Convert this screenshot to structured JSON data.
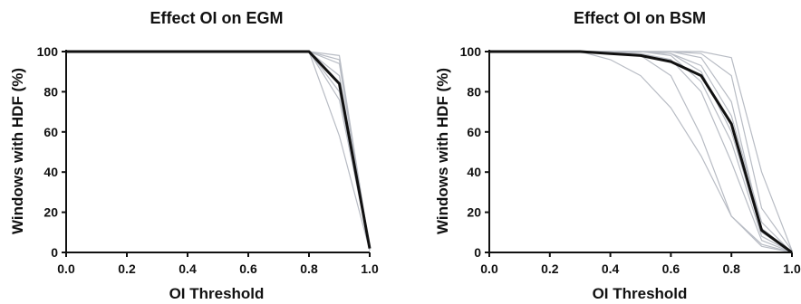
{
  "chart_data": [
    {
      "type": "line",
      "title": "Effect OI on EGM",
      "xlabel": "OI Threshold",
      "ylabel": "Windows with HDF (%)",
      "xlim": [
        0.0,
        1.0
      ],
      "ylim": [
        0,
        100
      ],
      "xticks": [
        "0.0",
        "0.2",
        "0.4",
        "0.6",
        "0.8",
        "1.0"
      ],
      "yticks": [
        "0",
        "20",
        "40",
        "60",
        "80",
        "100"
      ],
      "grid": false,
      "colors": {
        "individual": "#b8bcc4",
        "mean": "#111111"
      },
      "series": [
        {
          "x": [
            0.0,
            0.8,
            0.9,
            1.0
          ],
          "y": [
            100,
            100,
            98,
            2
          ]
        },
        {
          "x": [
            0.0,
            0.8,
            0.9,
            1.0
          ],
          "y": [
            100,
            100,
            96,
            2
          ]
        },
        {
          "x": [
            0.0,
            0.8,
            0.9,
            1.0
          ],
          "y": [
            100,
            100,
            94,
            1
          ]
        },
        {
          "x": [
            0.0,
            0.8,
            0.9,
            1.0
          ],
          "y": [
            100,
            100,
            88,
            2
          ]
        },
        {
          "x": [
            0.0,
            0.8,
            0.9,
            1.0
          ],
          "y": [
            100,
            100,
            80,
            1
          ]
        },
        {
          "x": [
            0.0,
            0.8,
            0.9,
            1.0
          ],
          "y": [
            100,
            100,
            76,
            2
          ]
        },
        {
          "x": [
            0.0,
            0.8,
            0.9,
            1.0
          ],
          "y": [
            100,
            100,
            58,
            1
          ]
        },
        {
          "x": [
            0.0,
            0.8,
            0.9,
            1.0
          ],
          "y": [
            100,
            100,
            84,
            2
          ],
          "mean": true
        }
      ]
    },
    {
      "type": "line",
      "title": "Effect OI on BSM",
      "xlabel": "OI Threshold",
      "ylabel": "Windows with HDF (%)",
      "xlim": [
        0.0,
        1.0
      ],
      "ylim": [
        0,
        100
      ],
      "xticks": [
        "0.0",
        "0.2",
        "0.4",
        "0.6",
        "0.8",
        "1.0"
      ],
      "yticks": [
        "0",
        "20",
        "40",
        "60",
        "80",
        "100"
      ],
      "grid": false,
      "colors": {
        "individual": "#b8bcc4",
        "mean": "#111111"
      },
      "series": [
        {
          "x": [
            0.0,
            0.3,
            0.4,
            0.5,
            0.6,
            0.7,
            0.8,
            0.9,
            1.0
          ],
          "y": [
            100,
            100,
            96,
            88,
            72,
            48,
            18,
            3,
            0
          ]
        },
        {
          "x": [
            0.0,
            0.3,
            0.4,
            0.5,
            0.6,
            0.7,
            0.8,
            0.9,
            1.0
          ],
          "y": [
            100,
            100,
            100,
            98,
            88,
            58,
            18,
            4,
            0
          ]
        },
        {
          "x": [
            0.0,
            0.3,
            0.4,
            0.5,
            0.6,
            0.7,
            0.8,
            0.9,
            1.0
          ],
          "y": [
            100,
            100,
            100,
            100,
            99,
            90,
            60,
            10,
            0
          ]
        },
        {
          "x": [
            0.0,
            0.3,
            0.4,
            0.5,
            0.6,
            0.7,
            0.8,
            0.9,
            1.0
          ],
          "y": [
            100,
            100,
            100,
            100,
            100,
            97,
            75,
            12,
            0
          ]
        },
        {
          "x": [
            0.0,
            0.3,
            0.4,
            0.5,
            0.6,
            0.7,
            0.8,
            0.9,
            1.0
          ],
          "y": [
            100,
            100,
            100,
            100,
            100,
            99,
            88,
            22,
            1
          ]
        },
        {
          "x": [
            0.0,
            0.3,
            0.4,
            0.5,
            0.6,
            0.7,
            0.8,
            0.9,
            1.0
          ],
          "y": [
            100,
            100,
            100,
            100,
            100,
            100,
            97,
            40,
            1
          ]
        },
        {
          "x": [
            0.0,
            0.3,
            0.4,
            0.5,
            0.6,
            0.7,
            0.8,
            0.9,
            1.0
          ],
          "y": [
            100,
            100,
            100,
            100,
            98,
            85,
            55,
            8,
            0
          ]
        },
        {
          "x": [
            0.0,
            0.3,
            0.4,
            0.5,
            0.6,
            0.7,
            0.8,
            0.9,
            1.0
          ],
          "y": [
            100,
            100,
            100,
            99,
            96,
            80,
            45,
            6,
            0
          ]
        },
        {
          "x": [
            0.0,
            0.3,
            0.4,
            0.5,
            0.6,
            0.7,
            0.8,
            0.9,
            1.0
          ],
          "y": [
            100,
            100,
            100,
            100,
            99,
            93,
            68,
            15,
            0
          ]
        },
        {
          "x": [
            0.0,
            0.3,
            0.4,
            0.5,
            0.6,
            0.7,
            0.8,
            0.9,
            1.0
          ],
          "y": [
            100,
            100,
            99,
            98,
            95,
            88,
            64,
            11,
            0
          ],
          "mean": true
        }
      ]
    }
  ]
}
